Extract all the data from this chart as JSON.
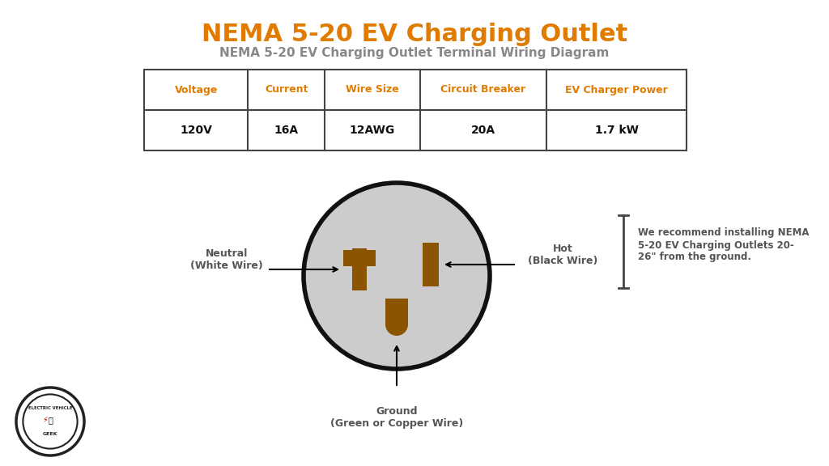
{
  "title": "NEMA 5-20 EV Charging Outlet",
  "subtitle": "NEMA 5-20 EV Charging Outlet Terminal Wiring Diagram",
  "title_color": "#E07B00",
  "subtitle_color": "#888888",
  "bg_color": "#FFFFFF",
  "table_headers": [
    "Voltage",
    "Current",
    "Wire Size",
    "Circuit Breaker",
    "EV Charger Power"
  ],
  "table_values": [
    "120V",
    "16A",
    "12AWG",
    "20A",
    "1.7 kW"
  ],
  "table_header_color": "#E07B00",
  "table_value_color": "#111111",
  "outlet_fill": "#CCCCCC",
  "outlet_border": "#111111",
  "pin_color": "#8B5500",
  "neutral_label": "Neutral\n(White Wire)",
  "hot_label": "Hot\n(Black Wire)",
  "ground_label": "Ground\n(Green or Copper Wire)",
  "label_color": "#555555",
  "note_text": "We recommend installing NEMA\n5-20 EV Charging Outlets 20-\n26\" from the ground.",
  "note_color": "#555555",
  "title_fontsize": 22,
  "subtitle_fontsize": 11,
  "table_header_fontsize": 9,
  "table_value_fontsize": 10,
  "label_fontsize": 9,
  "note_fontsize": 8.5
}
